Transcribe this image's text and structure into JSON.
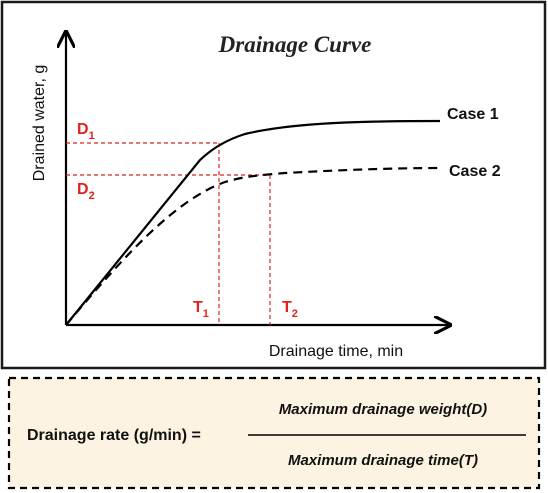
{
  "diagram": {
    "title": "Drainage Curve",
    "y_axis_label": "Drained water, g",
    "x_axis_label": "Drainage time, min",
    "curves": [
      {
        "label": "Case 1",
        "style": "solid"
      },
      {
        "label": "Case 2",
        "style": "dashed"
      }
    ],
    "markers": {
      "d1": {
        "letter": "D",
        "sub": "1"
      },
      "d2": {
        "letter": "D",
        "sub": "2"
      },
      "t1": {
        "letter": "T",
        "sub": "1"
      },
      "t2": {
        "letter": "T",
        "sub": "2"
      }
    },
    "colors": {
      "panel_border": "#1a1a1a",
      "curve": "#000000",
      "guide_lines": "#e2231a",
      "formula_background": "#fdf3e2",
      "formula_border": "#000000"
    }
  },
  "formula": {
    "lhs": "Drainage rate (g/min) =",
    "numerator": "Maximum drainage weight(D)",
    "denominator": "Maximum drainage time(T)"
  }
}
